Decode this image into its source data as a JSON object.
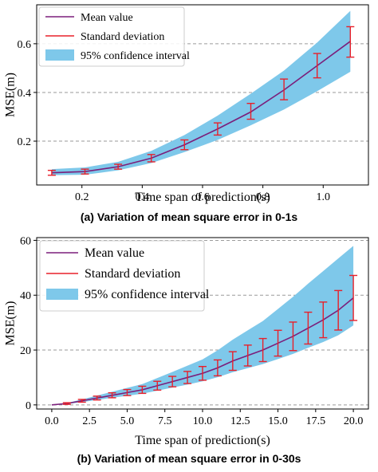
{
  "chart_data": [
    {
      "type": "line",
      "caption": "(a) Variation of mean square error in 0-1s",
      "xlabel": "Time span of prediction(s)",
      "ylabel": "MSE(m)",
      "xlim": [
        0.05,
        1.15
      ],
      "ylim": [
        0.02,
        0.76
      ],
      "xticks": [
        0.2,
        0.4,
        0.6,
        0.8,
        1.0
      ],
      "xtick_labels": [
        "0.2",
        "0.4",
        "0.6",
        "0.8",
        "1.0"
      ],
      "yticks": [
        0.2,
        0.4,
        0.6
      ],
      "ytick_labels": [
        "0.2",
        "0.4",
        "0.6"
      ],
      "grid": "horizontal dashed",
      "legend_position": "top-left",
      "legend": {
        "mean": "Mean value",
        "std": "Standard deviation",
        "ci": "95% confidence interval"
      },
      "colors": {
        "mean": "#7b1f7b",
        "std": "#e8202a",
        "ci": "#7ec8ea"
      },
      "x": [
        0.1,
        0.21,
        0.32,
        0.43,
        0.54,
        0.65,
        0.76,
        0.87,
        0.98,
        1.09
      ],
      "series": [
        {
          "name": "Mean value",
          "values": [
            0.07,
            0.075,
            0.095,
            0.13,
            0.185,
            0.25,
            0.32,
            0.41,
            0.51,
            0.61
          ]
        },
        {
          "name": "Standard deviation",
          "lower": [
            0.06,
            0.065,
            0.085,
            0.115,
            0.165,
            0.225,
            0.29,
            0.37,
            0.46,
            0.545
          ],
          "upper": [
            0.08,
            0.085,
            0.105,
            0.145,
            0.205,
            0.275,
            0.355,
            0.455,
            0.56,
            0.67
          ]
        },
        {
          "name": "95% confidence interval",
          "lower": [
            0.06,
            0.062,
            0.08,
            0.11,
            0.155,
            0.205,
            0.265,
            0.33,
            0.405,
            0.485
          ],
          "upper": [
            0.085,
            0.092,
            0.115,
            0.16,
            0.225,
            0.305,
            0.395,
            0.49,
            0.605,
            0.735
          ]
        }
      ]
    },
    {
      "type": "line",
      "caption": "(b) Variation of mean square error in 0-30s",
      "xlabel": "Time span of prediction(s)",
      "ylabel": "MSE(m)",
      "xlim": [
        -1.0,
        21.0
      ],
      "ylim": [
        -1.5,
        61.0
      ],
      "xticks": [
        0.0,
        2.5,
        5.0,
        7.5,
        10.0,
        12.5,
        15.0,
        17.5,
        20.0
      ],
      "xtick_labels": [
        "0.0",
        "2.5",
        "5.0",
        "7.5",
        "10.0",
        "12.5",
        "15.0",
        "17.5",
        "20.0"
      ],
      "yticks": [
        0,
        20,
        40,
        60
      ],
      "ytick_labels": [
        "0",
        "20",
        "40",
        "60"
      ],
      "grid": "horizontal dashed",
      "legend_position": "top-left",
      "legend": {
        "mean": "Mean value",
        "std": "Standard deviation",
        "ci": "95% confidence interval"
      },
      "colors": {
        "mean": "#7b1f7b",
        "std": "#e8202a",
        "ci": "#7ec8ea"
      },
      "x": [
        0,
        1,
        2,
        3,
        4,
        5,
        6,
        7,
        8,
        9,
        10,
        11,
        12,
        13,
        14,
        15,
        16,
        17,
        18,
        19,
        20
      ],
      "series": [
        {
          "name": "Mean value",
          "values": [
            0,
            0.5,
            1.5,
            2.5,
            3.5,
            4.5,
            5.5,
            7,
            8.5,
            10,
            11.5,
            13.5,
            16,
            18,
            20,
            22.5,
            25,
            28,
            31,
            34.5,
            39
          ]
        },
        {
          "name": "Standard deviation",
          "lower": [
            0,
            0.2,
            1.0,
            1.8,
            2.6,
            3.4,
            4.2,
            5.4,
            6.6,
            7.8,
            9.0,
            10.6,
            12.6,
            14.2,
            15.8,
            17.8,
            19.8,
            22.2,
            24.5,
            27.3,
            30.8
          ],
          "upper": [
            0,
            0.8,
            2.0,
            3.2,
            4.4,
            5.6,
            6.8,
            8.6,
            10.4,
            12.2,
            14.0,
            16.4,
            19.4,
            21.8,
            24.2,
            27.2,
            30.2,
            33.8,
            37.5,
            41.7,
            47.2
          ]
        },
        {
          "name": "95% confidence interval",
          "lower": [
            0,
            0.3,
            1.0,
            1.8,
            2.6,
            3.3,
            4.1,
            5.2,
            6.3,
            7.4,
            8.6,
            10.1,
            11.9,
            13.4,
            14.9,
            16.7,
            18.6,
            20.8,
            22.9,
            25.4,
            29.0
          ],
          "upper": [
            0,
            0.7,
            2.0,
            3.4,
            4.8,
            6.2,
            7.6,
            9.8,
            12.0,
            14.3,
            16.6,
            19.9,
            23.8,
            27.2,
            30.6,
            35.0,
            39.4,
            44.2,
            48.8,
            53.4,
            58.0
          ]
        }
      ]
    }
  ]
}
